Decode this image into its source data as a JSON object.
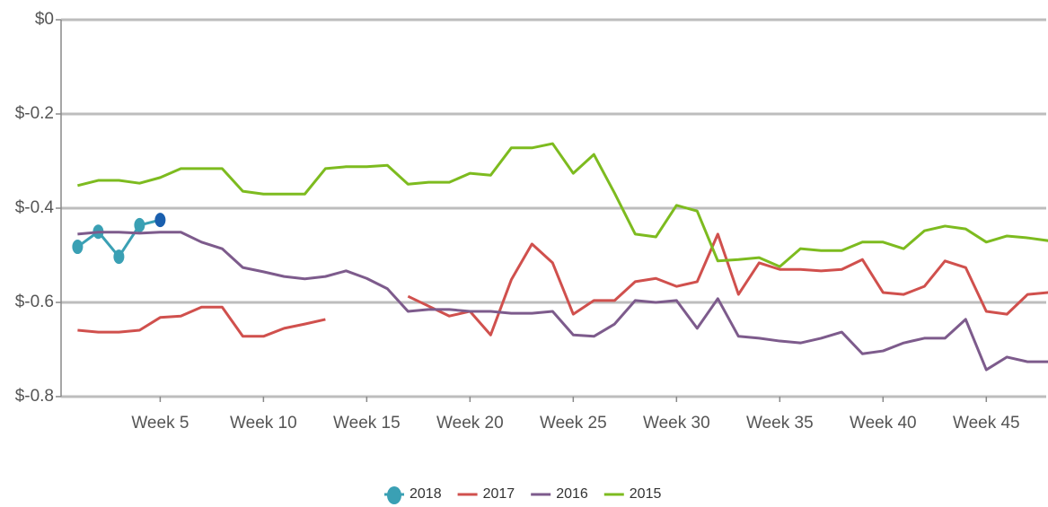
{
  "chart_data": {
    "type": "line",
    "x": [
      1,
      2,
      3,
      4,
      5,
      6,
      7,
      8,
      9,
      10,
      11,
      12,
      13,
      14,
      15,
      16,
      17,
      18,
      19,
      20,
      21,
      22,
      23,
      24,
      25,
      26,
      27,
      28,
      29,
      30,
      31,
      32,
      33,
      34,
      35,
      36,
      37,
      38,
      39,
      40,
      41,
      42,
      43,
      44,
      45,
      46,
      47,
      48
    ],
    "xlim": [
      0.2,
      47.9
    ],
    "xticks": [
      {
        "value": 5,
        "label": "Week 5"
      },
      {
        "value": 10,
        "label": "Week 10"
      },
      {
        "value": 15,
        "label": "Week 15"
      },
      {
        "value": 20,
        "label": "Week 20"
      },
      {
        "value": 25,
        "label": "Week 25"
      },
      {
        "value": 30,
        "label": "Week 30"
      },
      {
        "value": 35,
        "label": "Week 35"
      },
      {
        "value": 40,
        "label": "Week 40"
      },
      {
        "value": 45,
        "label": "Week 45"
      }
    ],
    "ylim": [
      -0.8,
      0
    ],
    "yticks": [
      {
        "value": 0,
        "label": "$0"
      },
      {
        "value": -0.2,
        "label": "$-0.2"
      },
      {
        "value": -0.4,
        "label": "$-0.4"
      },
      {
        "value": -0.6,
        "label": "$-0.6"
      },
      {
        "value": -0.8,
        "label": "$-0.8"
      }
    ],
    "grid": true,
    "legend": "bottom",
    "series": [
      {
        "name": "2018",
        "color": "#3aa0b4",
        "markers": true,
        "last_point_color": "#1a5fae",
        "values": [
          -0.482,
          -0.45,
          -0.503,
          -0.436,
          -0.425,
          null,
          null,
          null,
          null,
          null,
          null,
          null,
          null,
          null,
          null,
          null,
          null,
          null,
          null,
          null,
          null,
          null,
          null,
          null,
          null,
          null,
          null,
          null,
          null,
          null,
          null,
          null,
          null,
          null,
          null,
          null,
          null,
          null,
          null,
          null,
          null,
          null,
          null,
          null,
          null,
          null,
          null,
          null
        ]
      },
      {
        "name": "2017",
        "color": "#d0504d",
        "values": [
          -0.659,
          -0.663,
          -0.663,
          -0.659,
          -0.632,
          -0.629,
          -0.61,
          -0.61,
          -0.672,
          -0.672,
          -0.655,
          -0.646,
          -0.636,
          null,
          null,
          null,
          -0.587,
          -0.608,
          -0.629,
          -0.619,
          -0.669,
          -0.552,
          -0.476,
          -0.516,
          -0.625,
          -0.596,
          -0.596,
          -0.556,
          -0.549,
          -0.566,
          -0.556,
          -0.455,
          -0.583,
          -0.516,
          -0.53,
          -0.53,
          -0.533,
          -0.53,
          -0.509,
          -0.579,
          -0.583,
          -0.566,
          -0.512,
          -0.526,
          -0.619,
          -0.625,
          -0.583,
          -0.579
        ]
      },
      {
        "name": "2016",
        "color": "#7d5b8c",
        "values": [
          -0.455,
          -0.451,
          -0.451,
          -0.453,
          -0.451,
          -0.451,
          -0.472,
          -0.486,
          -0.526,
          -0.535,
          -0.545,
          -0.55,
          -0.545,
          -0.533,
          -0.549,
          -0.571,
          -0.619,
          -0.615,
          -0.615,
          -0.619,
          -0.619,
          -0.623,
          -0.623,
          -0.619,
          -0.669,
          -0.672,
          -0.646,
          -0.596,
          -0.6,
          -0.596,
          -0.655,
          -0.592,
          -0.672,
          -0.676,
          -0.682,
          -0.686,
          -0.676,
          -0.663,
          -0.709,
          -0.703,
          -0.686,
          -0.676,
          -0.676,
          -0.636,
          -0.743,
          -0.716,
          -0.726,
          -0.726
        ]
      },
      {
        "name": "2015",
        "color": "#7dbb1f",
        "values": [
          -0.352,
          -0.341,
          -0.341,
          -0.347,
          -0.335,
          -0.316,
          -0.316,
          -0.316,
          -0.364,
          -0.37,
          -0.37,
          -0.37,
          -0.316,
          -0.312,
          -0.312,
          -0.309,
          -0.349,
          -0.345,
          -0.345,
          -0.326,
          -0.33,
          -0.272,
          -0.272,
          -0.263,
          -0.326,
          -0.286,
          -0.368,
          -0.455,
          -0.461,
          -0.394,
          -0.406,
          -0.512,
          -0.509,
          -0.505,
          -0.524,
          -0.486,
          -0.49,
          -0.49,
          -0.472,
          -0.472,
          -0.486,
          -0.448,
          -0.438,
          -0.444,
          -0.472,
          -0.459,
          -0.463,
          -0.469
        ]
      }
    ]
  }
}
